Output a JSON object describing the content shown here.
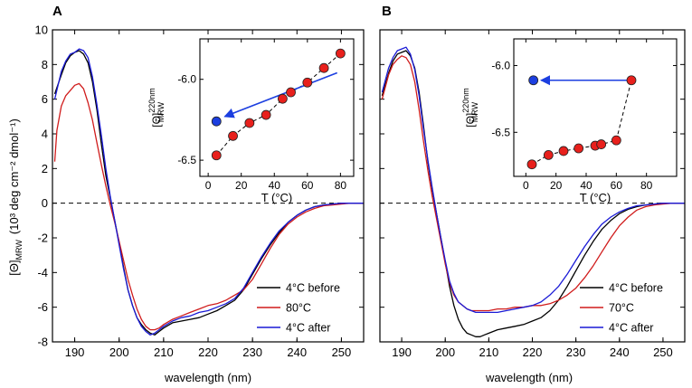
{
  "chart_data": [
    {
      "panel": "A",
      "type": "line",
      "ylabel_prefix": "[Θ]",
      "ylabel_sub": "MRW",
      "ylabel_units": "(10³ deg cm⁻² dmol⁻¹)",
      "xlabel": "wavelength  (nm)",
      "xlim": [
        185,
        255
      ],
      "ylim": [
        -8,
        10
      ],
      "xticks": [
        190,
        200,
        210,
        220,
        230,
        240,
        250
      ],
      "yticks": [
        -8,
        -6,
        -4,
        -2,
        0,
        2,
        4,
        6,
        8,
        10
      ],
      "zero_line": "dashed",
      "series": [
        {
          "name": "4°C before",
          "color": "#000000",
          "x": [
            185.5,
            187,
            188,
            189,
            190,
            191,
            192,
            193,
            194,
            195,
            196,
            197,
            198,
            199,
            200,
            201,
            202,
            203,
            204,
            205,
            206,
            207,
            208,
            209,
            210,
            212,
            214,
            216,
            218,
            220,
            222,
            224,
            226,
            228,
            230,
            232,
            234,
            236,
            238,
            240,
            242,
            244,
            246,
            248,
            250,
            252,
            254,
            255
          ],
          "y": [
            6.3,
            7.4,
            8.1,
            8.5,
            8.7,
            8.8,
            8.6,
            8.1,
            7.0,
            5.4,
            3.4,
            1.6,
            0.3,
            -1.0,
            -2.3,
            -3.7,
            -5.0,
            -5.9,
            -6.6,
            -7.0,
            -7.3,
            -7.5,
            -7.6,
            -7.4,
            -7.2,
            -6.9,
            -6.8,
            -6.7,
            -6.6,
            -6.4,
            -6.2,
            -5.9,
            -5.6,
            -5.0,
            -4.1,
            -3.2,
            -2.4,
            -1.7,
            -1.1,
            -0.7,
            -0.4,
            -0.2,
            -0.1,
            -0.05,
            0.0,
            0.0,
            0.0,
            0.0
          ]
        },
        {
          "name": "80°C",
          "color": "#d01c1c",
          "x": [
            185.5,
            186,
            187,
            188,
            189,
            190,
            191,
            192,
            193,
            194,
            195,
            196,
            197,
            198,
            199,
            200,
            201,
            202,
            203,
            204,
            205,
            206,
            207,
            208,
            209,
            210,
            212,
            214,
            216,
            218,
            220,
            222,
            224,
            226,
            228,
            230,
            232,
            234,
            236,
            238,
            240,
            242,
            244,
            246,
            248,
            250,
            252,
            254,
            255
          ],
          "y": [
            2.4,
            4.2,
            5.6,
            6.2,
            6.5,
            6.8,
            6.9,
            6.6,
            5.8,
            4.8,
            3.5,
            2.2,
            1.0,
            -0.1,
            -1.1,
            -2.2,
            -3.3,
            -4.4,
            -5.3,
            -6.1,
            -6.7,
            -7.1,
            -7.3,
            -7.3,
            -7.2,
            -7.0,
            -6.7,
            -6.5,
            -6.3,
            -6.1,
            -5.9,
            -5.8,
            -5.6,
            -5.3,
            -5.0,
            -4.4,
            -3.5,
            -2.6,
            -1.8,
            -1.2,
            -0.8,
            -0.5,
            -0.3,
            -0.15,
            -0.1,
            -0.05,
            0.0,
            0.0,
            0.0
          ]
        },
        {
          "name": "4°C after",
          "color": "#1a1ad6",
          "x": [
            185.5,
            187,
            188,
            189,
            190,
            191,
            192,
            193,
            194,
            195,
            196,
            197,
            198,
            199,
            200,
            201,
            202,
            203,
            204,
            205,
            206,
            207,
            208,
            209,
            210,
            212,
            214,
            216,
            218,
            220,
            222,
            224,
            226,
            228,
            230,
            232,
            234,
            236,
            238,
            240,
            242,
            244,
            246,
            248,
            250,
            252,
            254,
            255
          ],
          "y": [
            6.0,
            7.6,
            8.2,
            8.6,
            8.7,
            8.9,
            8.8,
            8.4,
            7.3,
            5.7,
            3.9,
            2.0,
            0.4,
            -1.0,
            -2.4,
            -3.8,
            -5.0,
            -5.9,
            -6.6,
            -7.1,
            -7.4,
            -7.6,
            -7.5,
            -7.3,
            -7.1,
            -6.8,
            -6.6,
            -6.5,
            -6.3,
            -6.2,
            -6.0,
            -5.8,
            -5.5,
            -4.9,
            -4.0,
            -3.1,
            -2.3,
            -1.6,
            -1.1,
            -0.7,
            -0.4,
            -0.2,
            -0.1,
            -0.05,
            0.0,
            0.0,
            0.0,
            0.0
          ]
        }
      ],
      "legend": [
        "4°C before",
        "80°C",
        "4°C after"
      ],
      "inset": {
        "xlabel": "T  (°C)",
        "ylabel_prefix": "[Θ]",
        "ylabel_sup": "220nm",
        "ylabel_sub": "MRW",
        "xlim": [
          -5,
          88
        ],
        "ylim": [
          -6.6,
          -5.75
        ],
        "xticks": [
          0,
          20,
          40,
          60,
          80
        ],
        "yticks": [
          -6.5,
          -6.0
        ],
        "heating": {
          "color": "#e8201c",
          "x": [
            5,
            15,
            25,
            35,
            45,
            50,
            60,
            70,
            80
          ],
          "y": [
            -6.47,
            -6.35,
            -6.27,
            -6.22,
            -6.12,
            -6.08,
            -6.02,
            -5.93,
            -5.84
          ]
        },
        "cooled": {
          "color": "#1c3fe0",
          "x": [
            5
          ],
          "y": [
            -6.26
          ]
        },
        "arrow": {
          "from": [
            78,
            -5.96
          ],
          "to": [
            10,
            -6.23
          ]
        }
      }
    },
    {
      "panel": "B",
      "type": "line",
      "xlabel": "wavelength  (nm)",
      "xlim": [
        185,
        255
      ],
      "ylim": [
        -8,
        10
      ],
      "xticks": [
        190,
        200,
        210,
        220,
        230,
        240,
        250
      ],
      "yticks": [
        -8,
        -6,
        -4,
        -2,
        0,
        2,
        4,
        6,
        8,
        10
      ],
      "zero_line": "dashed",
      "series": [
        {
          "name": "4°C before",
          "color": "#000000",
          "x": [
            185.5,
            187,
            188,
            189,
            190,
            191,
            192,
            193,
            194,
            195,
            196,
            197,
            198,
            199,
            200,
            201,
            202,
            203,
            204,
            205,
            206,
            207,
            208,
            209,
            210,
            212,
            214,
            216,
            218,
            220,
            222,
            224,
            226,
            228,
            230,
            232,
            234,
            236,
            238,
            240,
            242,
            244,
            246,
            248,
            250,
            252,
            254,
            255
          ],
          "y": [
            6.2,
            7.5,
            8.2,
            8.6,
            8.7,
            8.8,
            8.5,
            7.8,
            6.4,
            4.5,
            2.4,
            0.8,
            -0.6,
            -2.0,
            -3.4,
            -4.8,
            -5.9,
            -6.7,
            -7.2,
            -7.5,
            -7.6,
            -7.7,
            -7.7,
            -7.6,
            -7.5,
            -7.3,
            -7.2,
            -7.1,
            -7.0,
            -6.8,
            -6.6,
            -6.2,
            -5.6,
            -4.8,
            -3.9,
            -3.0,
            -2.2,
            -1.5,
            -1.0,
            -0.6,
            -0.35,
            -0.2,
            -0.1,
            -0.05,
            0.0,
            0.0,
            0.0,
            0.0
          ]
        },
        {
          "name": "70°C",
          "color": "#d01c1c",
          "x": [
            185.5,
            187,
            188,
            189,
            190,
            191,
            192,
            193,
            194,
            195,
            196,
            197,
            198,
            199,
            200,
            201,
            202,
            203,
            204,
            205,
            206,
            207,
            208,
            209,
            210,
            212,
            214,
            216,
            218,
            220,
            222,
            224,
            226,
            228,
            230,
            232,
            234,
            236,
            238,
            240,
            242,
            244,
            246,
            248,
            250,
            252,
            254,
            255
          ],
          "y": [
            6.0,
            7.4,
            8.0,
            8.3,
            8.5,
            8.4,
            8.0,
            7.0,
            5.4,
            3.6,
            1.9,
            0.4,
            -0.9,
            -2.2,
            -3.5,
            -4.6,
            -5.3,
            -5.7,
            -5.9,
            -6.1,
            -6.2,
            -6.2,
            -6.2,
            -6.2,
            -6.2,
            -6.1,
            -6.1,
            -6.0,
            -6.0,
            -5.9,
            -5.9,
            -5.8,
            -5.6,
            -5.3,
            -4.9,
            -4.3,
            -3.6,
            -2.8,
            -2.0,
            -1.3,
            -0.8,
            -0.4,
            -0.2,
            -0.1,
            -0.05,
            0.0,
            0.0,
            0.0
          ]
        },
        {
          "name": "4°C after",
          "color": "#1a1ad6",
          "x": [
            185.5,
            187,
            188,
            189,
            190,
            191,
            192,
            193,
            194,
            195,
            196,
            197,
            198,
            199,
            200,
            201,
            202,
            203,
            204,
            205,
            206,
            207,
            208,
            209,
            210,
            212,
            214,
            216,
            218,
            220,
            222,
            224,
            226,
            228,
            230,
            232,
            234,
            236,
            238,
            240,
            242,
            244,
            246,
            248,
            250,
            252,
            254,
            255
          ],
          "y": [
            6.4,
            7.8,
            8.4,
            8.8,
            8.9,
            9.0,
            8.6,
            7.7,
            6.2,
            4.3,
            2.5,
            0.9,
            -0.6,
            -2.0,
            -3.3,
            -4.5,
            -5.2,
            -5.7,
            -5.9,
            -6.1,
            -6.2,
            -6.3,
            -6.3,
            -6.3,
            -6.3,
            -6.3,
            -6.2,
            -6.1,
            -6.0,
            -5.9,
            -5.7,
            -5.3,
            -4.8,
            -4.1,
            -3.3,
            -2.5,
            -1.8,
            -1.2,
            -0.8,
            -0.5,
            -0.3,
            -0.15,
            -0.1,
            -0.05,
            0.0,
            0.0,
            0.0,
            0.0
          ]
        }
      ],
      "legend": [
        "4°C before",
        "70°C",
        "4°C after"
      ],
      "inset": {
        "xlabel": "T  (°C)",
        "ylabel_prefix": "[Θ]",
        "ylabel_sup": "220nm",
        "ylabel_sub": "MRW",
        "xlim": [
          -8,
          100
        ],
        "ylim": [
          -6.83,
          -5.8
        ],
        "xticks": [
          0,
          20,
          40,
          60,
          80
        ],
        "yticks": [
          -6.5,
          -6.0
        ],
        "heating": {
          "color": "#e8201c",
          "x": [
            4,
            15,
            25,
            35,
            46,
            50,
            60,
            70
          ],
          "y": [
            -6.74,
            -6.67,
            -6.64,
            -6.62,
            -6.6,
            -6.59,
            -6.56,
            -6.11
          ]
        },
        "cooled": {
          "color": "#1c3fe0",
          "x": [
            5
          ],
          "y": [
            -6.11
          ]
        },
        "arrow": {
          "from": [
            67,
            -6.11
          ],
          "to": [
            10,
            -6.11
          ]
        }
      }
    }
  ]
}
